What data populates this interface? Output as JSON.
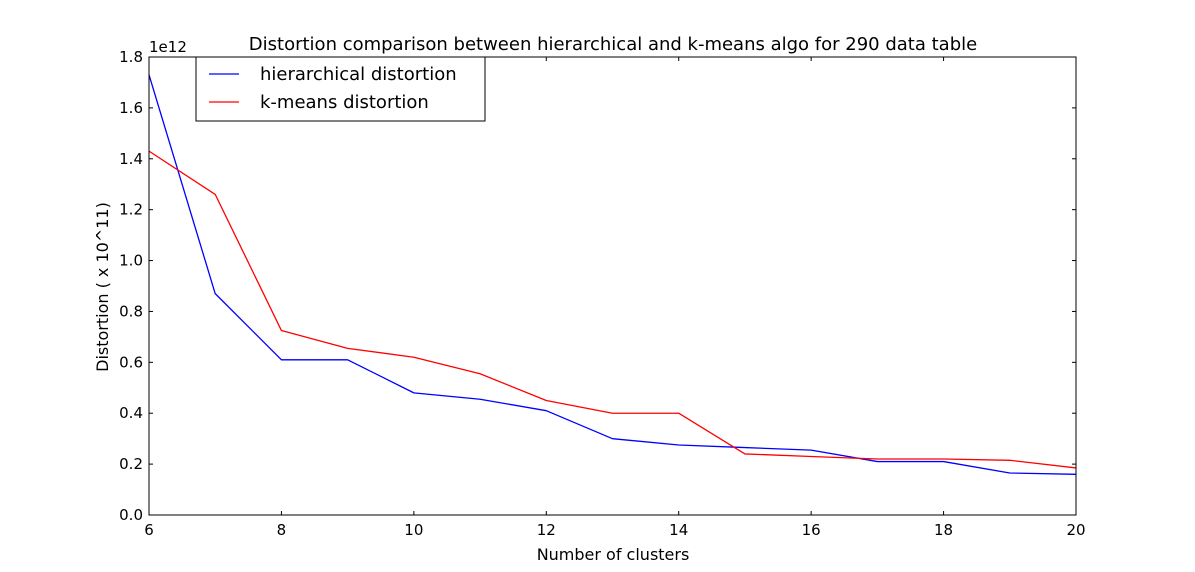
{
  "chart_data": {
    "type": "line",
    "title": "Distortion comparison between hierarchical and k-means algo for 290 data table",
    "xlabel": "Number of clusters",
    "ylabel": "Distortion ( x 10^11)",
    "y_offset_label": "1e12",
    "xlim": [
      6,
      20
    ],
    "ylim": [
      0.0,
      1.8
    ],
    "x_ticks": [
      6,
      8,
      10,
      12,
      14,
      16,
      18,
      20
    ],
    "x_tick_labels": [
      "6",
      "8",
      "10",
      "12",
      "14",
      "16",
      "18",
      "20"
    ],
    "y_ticks": [
      0.0,
      0.2,
      0.4,
      0.6,
      0.8,
      1.0,
      1.2,
      1.4,
      1.6,
      1.8
    ],
    "y_tick_labels": [
      "0.0",
      "0.2",
      "0.4",
      "0.6",
      "0.8",
      "1.0",
      "1.2",
      "1.4",
      "1.6",
      "1.8"
    ],
    "grid": false,
    "legend_position": "top-left",
    "x": [
      6,
      7,
      8,
      9,
      10,
      11,
      12,
      13,
      14,
      15,
      16,
      17,
      18,
      19,
      20
    ],
    "series": [
      {
        "name": "hierarchical distortion",
        "color": "#0000ff",
        "values": [
          1.73,
          0.87,
          0.61,
          0.61,
          0.48,
          0.455,
          0.41,
          0.3,
          0.275,
          0.265,
          0.255,
          0.21,
          0.21,
          0.165,
          0.16
        ]
      },
      {
        "name": "k-means distortion",
        "color": "#ff0000",
        "values": [
          1.43,
          1.26,
          0.725,
          0.655,
          0.62,
          0.555,
          0.45,
          0.4,
          0.4,
          0.24,
          0.23,
          0.22,
          0.22,
          0.215,
          0.185
        ]
      }
    ]
  }
}
